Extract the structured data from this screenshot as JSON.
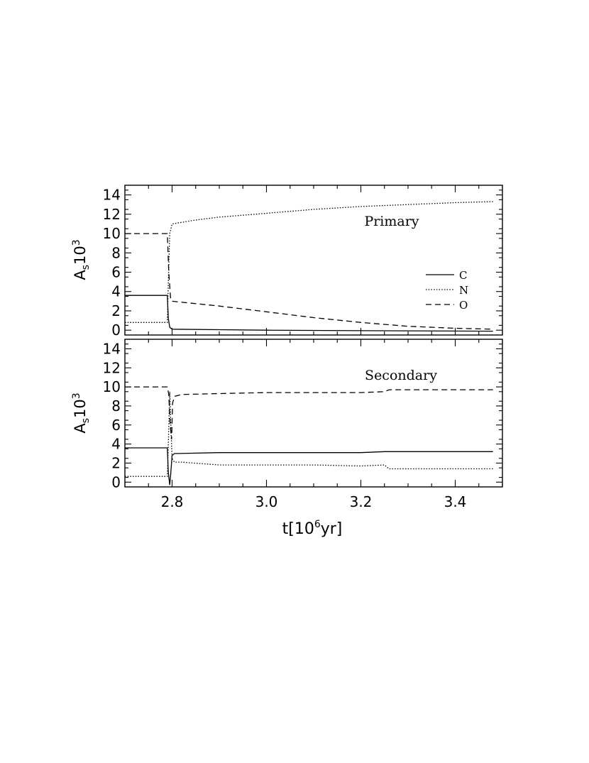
{
  "chart_data": [
    {
      "type": "line",
      "panel": "top",
      "annotation": "Primary",
      "ylabel_main": "A",
      "ylabel_sub": "s",
      "ylabel_tail": "10",
      "ylabel_sup": "3",
      "xlim": [
        2.7,
        3.5
      ],
      "ylim": [
        -0.5,
        15
      ],
      "yticks": [
        0,
        2,
        4,
        6,
        8,
        10,
        12,
        14
      ],
      "legend_position": "right",
      "series": [
        {
          "name": "C",
          "style": "solid",
          "x": [
            2.7,
            2.79,
            2.792,
            2.795,
            2.8,
            2.9,
            3.0,
            3.2,
            3.48
          ],
          "y": [
            3.6,
            3.6,
            1.2,
            0.3,
            0.1,
            0.05,
            0.0,
            -0.05,
            -0.1
          ]
        },
        {
          "name": "N",
          "style": "dotted",
          "x": [
            2.7,
            2.79,
            2.792,
            2.795,
            2.8,
            2.85,
            2.9,
            3.0,
            3.1,
            3.2,
            3.3,
            3.4,
            3.48
          ],
          "y": [
            0.8,
            0.8,
            5.0,
            10.0,
            11.0,
            11.4,
            11.7,
            12.1,
            12.5,
            12.8,
            13.0,
            13.2,
            13.3
          ]
        },
        {
          "name": "O",
          "style": "dashed",
          "x": [
            2.7,
            2.79,
            2.793,
            2.797,
            2.8,
            2.9,
            3.0,
            3.1,
            3.2,
            3.3,
            3.4,
            3.48
          ],
          "y": [
            10.0,
            10.0,
            6.0,
            3.2,
            3.0,
            2.5,
            1.9,
            1.3,
            0.8,
            0.4,
            0.2,
            0.1
          ]
        }
      ]
    },
    {
      "type": "line",
      "panel": "bottom",
      "annotation": "Secondary",
      "ylabel_main": "A",
      "ylabel_sub": "s",
      "ylabel_tail": "10",
      "ylabel_sup": "3",
      "xlabel_main": "t[10",
      "xlabel_sup": "6",
      "xlabel_tail": "yr]",
      "xlim": [
        2.7,
        3.5
      ],
      "ylim": [
        -0.5,
        15
      ],
      "xticks": [
        "2.8",
        "3.0",
        "3.2",
        "3.4"
      ],
      "yticks": [
        0,
        2,
        4,
        6,
        8,
        10,
        12,
        14
      ],
      "series": [
        {
          "name": "C",
          "style": "solid",
          "x": [
            2.7,
            2.79,
            2.792,
            2.795,
            2.797,
            2.8,
            2.805,
            2.81,
            2.9,
            3.0,
            3.2,
            3.25,
            3.4,
            3.48
          ],
          "y": [
            3.6,
            3.6,
            1.0,
            -0.3,
            0.8,
            2.8,
            3.0,
            3.0,
            3.1,
            3.1,
            3.1,
            3.2,
            3.2,
            3.2
          ]
        },
        {
          "name": "N",
          "style": "dotted",
          "x": [
            2.7,
            2.79,
            2.792,
            2.795,
            2.798,
            2.8,
            2.805,
            2.82,
            2.9,
            3.0,
            3.1,
            3.2,
            3.25,
            3.26,
            3.4,
            3.48
          ],
          "y": [
            0.6,
            0.6,
            4.0,
            9.5,
            5.0,
            2.5,
            2.1,
            2.1,
            1.8,
            1.8,
            1.8,
            1.7,
            1.8,
            1.4,
            1.4,
            1.4
          ]
        },
        {
          "name": "O",
          "style": "dashed",
          "x": [
            2.7,
            2.79,
            2.793,
            2.796,
            2.799,
            2.801,
            2.805,
            2.82,
            2.9,
            3.0,
            3.1,
            3.2,
            3.25,
            3.26,
            3.4,
            3.48
          ],
          "y": [
            10.0,
            10.0,
            9.2,
            6.0,
            4.5,
            8.3,
            9.0,
            9.2,
            9.3,
            9.4,
            9.4,
            9.4,
            9.5,
            9.7,
            9.7,
            9.7
          ]
        }
      ]
    }
  ]
}
